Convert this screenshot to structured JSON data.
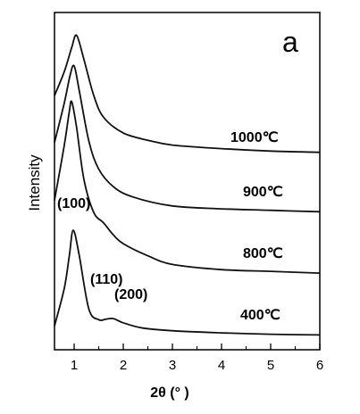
{
  "chart_data": {
    "type": "line",
    "panel_label": "a",
    "xlabel": "2θ (°  )",
    "ylabel": "Intensity",
    "xlim": [
      0.6,
      6
    ],
    "xticks": [
      1,
      2,
      3,
      4,
      5,
      6
    ],
    "grid": false,
    "y_tick_labels": false,
    "series": [
      {
        "name": "1000℃",
        "x": [
          0.6,
          0.8,
          0.95,
          1.05,
          1.2,
          1.4,
          1.6,
          2.0,
          2.5,
          3.0,
          4.0,
          5.0,
          6.0
        ],
        "y": [
          0.48,
          0.68,
          0.88,
          0.98,
          0.78,
          0.48,
          0.3,
          0.17,
          0.11,
          0.07,
          0.04,
          0.02,
          0.01
        ]
      },
      {
        "name": "900℃",
        "x": [
          0.6,
          0.8,
          0.92,
          1.0,
          1.1,
          1.3,
          1.5,
          1.8,
          2.2,
          3.0,
          4.0,
          5.0,
          6.0
        ],
        "y": [
          0.48,
          0.75,
          0.94,
          1.0,
          0.84,
          0.49,
          0.3,
          0.18,
          0.11,
          0.05,
          0.03,
          0.02,
          0.01
        ]
      },
      {
        "name": "800℃",
        "x": [
          0.6,
          0.8,
          0.9,
          0.95,
          1.05,
          1.2,
          1.4,
          1.6,
          1.8,
          2.0,
          2.5,
          3.0,
          4.0,
          5.0,
          6.0
        ],
        "y": [
          0.43,
          0.75,
          0.94,
          1.0,
          0.85,
          0.55,
          0.36,
          0.3,
          0.23,
          0.18,
          0.11,
          0.06,
          0.03,
          0.02,
          0.01
        ]
      },
      {
        "name": "400℃",
        "x": [
          0.6,
          0.8,
          0.9,
          0.98,
          1.1,
          1.3,
          1.5,
          1.65,
          1.8,
          2.0,
          2.4,
          3.0,
          4.0,
          5.0,
          6.0
        ],
        "y": [
          0.09,
          0.45,
          0.75,
          1.0,
          0.77,
          0.25,
          0.15,
          0.155,
          0.16,
          0.12,
          0.07,
          0.045,
          0.025,
          0.012,
          0.005
        ]
      }
    ],
    "annotations": [
      {
        "text": "(100)",
        "x": 0.95
      },
      {
        "text": "(110)",
        "x": 1.7
      },
      {
        "text": "(200)",
        "x": 2.05
      }
    ]
  }
}
